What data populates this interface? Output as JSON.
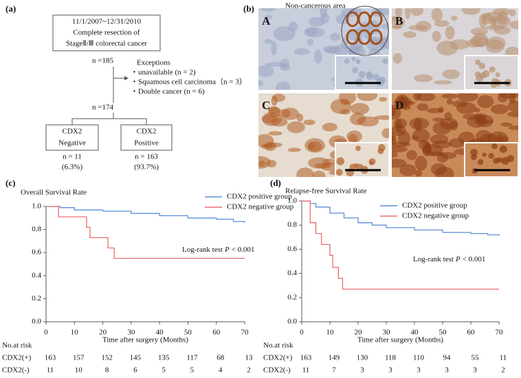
{
  "panel_a": {
    "label": "(a)",
    "box_lines": [
      "11/1/2007~12/31/2010",
      "Complete resection of",
      "StageⅡ/Ⅲ colorectal cancer"
    ],
    "n_total": "n =185",
    "exceptions_title": "Exceptions",
    "exceptions": [
      "・unavailable (n = 2)",
      "・Squamous cell carcinoma（n = 3）",
      "・Double cancer (n = 6)"
    ],
    "n_after": "n =174",
    "groups": [
      {
        "box": [
          "CDX2",
          "Negative"
        ],
        "n": "n = 11",
        "pct": "(6.3%)"
      },
      {
        "box": [
          "CDX2",
          "Positive"
        ],
        "n": "n = 163",
        "pct": "(93.7%)"
      }
    ]
  },
  "panel_b": {
    "label": "(b)",
    "caption": "Non-cancerous area",
    "images": [
      "A",
      "B",
      "C",
      "D"
    ]
  },
  "chart_data": [
    {
      "type": "line",
      "label": "(c)",
      "title": "Overall Survival Rate",
      "x_label": "Time after surgery (Months)",
      "xlim": [
        0,
        70
      ],
      "xticks": [
        0,
        10,
        20,
        30,
        40,
        50,
        60,
        70
      ],
      "ylim": [
        0,
        1.0
      ],
      "yticks": [
        {
          "value": 0,
          "label": "0.0"
        },
        0.2,
        0.4,
        0.6,
        0.8,
        {
          "value": 1.0,
          "label": "1.0"
        }
      ],
      "series": [
        {
          "name": "CDX2 positive group",
          "color": "#5b8ed8",
          "x": [
            0,
            5,
            10,
            20,
            30,
            40,
            50,
            60,
            66,
            70
          ],
          "values": [
            1.0,
            0.99,
            0.97,
            0.96,
            0.94,
            0.92,
            0.9,
            0.89,
            0.87,
            0.86
          ]
        },
        {
          "name": "CDX2 negative group",
          "color": "#ee6b6b",
          "x": [
            0,
            4.4,
            14.3,
            15.5,
            21.8,
            24,
            70
          ],
          "values": [
            1.0,
            0.91,
            0.82,
            0.73,
            0.64,
            0.55,
            0.55
          ]
        }
      ],
      "annotation": {
        "prefix": "Log-rank test",
        "italic": "P",
        "suffix": "< 0.001"
      },
      "risk_table": {
        "title": "No.at risk",
        "rows": [
          {
            "label": "CDX2(+)",
            "values": [
              163,
              157,
              152,
              145,
              135,
              117,
              68,
              13
            ]
          },
          {
            "label": "CDX2(-)",
            "values": [
              11,
              10,
              8,
              6,
              5,
              5,
              4,
              2
            ]
          }
        ]
      }
    },
    {
      "type": "line",
      "label": "(d)",
      "title": "Relapse-free Survival Rate",
      "x_label": "Time after surgery (Months)",
      "xlim": [
        0,
        70
      ],
      "xticks": [
        0,
        10,
        20,
        30,
        40,
        50,
        60,
        70
      ],
      "ylim": [
        0,
        1.0
      ],
      "yticks": [
        {
          "value": 0,
          "label": "0.0"
        },
        0.2,
        0.4,
        0.6,
        0.8,
        {
          "value": 1.0,
          "label": "1.0"
        }
      ],
      "series": [
        {
          "name": "CDX2 positive group",
          "color": "#5b8ed8",
          "x": [
            0,
            3,
            5,
            10,
            15,
            20,
            25,
            30,
            40,
            50,
            60,
            66,
            70
          ],
          "values": [
            1.0,
            0.98,
            0.95,
            0.9,
            0.86,
            0.82,
            0.8,
            0.78,
            0.76,
            0.74,
            0.73,
            0.72,
            0.71
          ]
        },
        {
          "name": "CDX2 negative group",
          "color": "#ee6b6b",
          "x": [
            0,
            3,
            5,
            7,
            10,
            11,
            13,
            14.5,
            70
          ],
          "values": [
            1.0,
            0.82,
            0.73,
            0.64,
            0.55,
            0.45,
            0.36,
            0.27,
            0.27
          ]
        }
      ],
      "annotation": {
        "prefix": "Log-rank test",
        "italic": "P",
        "suffix": "< 0.001"
      },
      "risk_table": {
        "title": "No.at risk",
        "rows": [
          {
            "label": "CDX2(+)",
            "values": [
              163,
              149,
              130,
              118,
              110,
              94,
              55,
              11
            ]
          },
          {
            "label": "CDX2(-)",
            "values": [
              11,
              7,
              3,
              3,
              3,
              3,
              3,
              2
            ]
          }
        ]
      }
    }
  ]
}
